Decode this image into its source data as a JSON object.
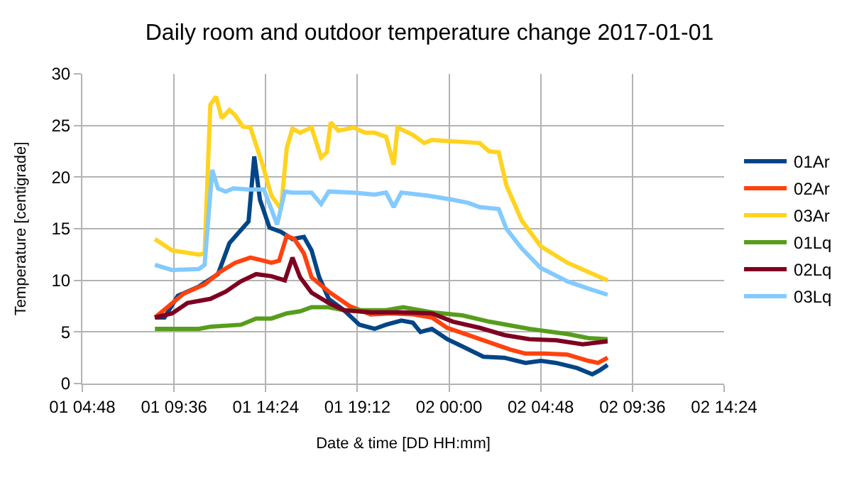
{
  "chart_data": {
    "type": "line",
    "title": "Daily room and outdoor temperature change 2017-01-01",
    "xlabel": "Date & time [DD HH:mm]",
    "ylabel": "Temperature [centigrade]",
    "xlim": [
      "2017-01-01T04:48",
      "2017-01-02T14:24"
    ],
    "ylim": [
      0,
      30
    ],
    "xticks": [
      {
        "value": "2017-01-01T04:48",
        "label": "01 04:48"
      },
      {
        "value": "2017-01-01T09:36",
        "label": "01 09:36"
      },
      {
        "value": "2017-01-01T14:24",
        "label": "01 14:24"
      },
      {
        "value": "2017-01-01T19:12",
        "label": "01 19:12"
      },
      {
        "value": "2017-01-02T00:00",
        "label": "02 00:00"
      },
      {
        "value": "2017-01-02T04:48",
        "label": "02 04:48"
      },
      {
        "value": "2017-01-02T09:36",
        "label": "02 09:36"
      },
      {
        "value": "2017-01-02T14:24",
        "label": "02 14:24"
      }
    ],
    "yticks": [
      0,
      5,
      10,
      15,
      20,
      25,
      30
    ],
    "grid": true,
    "legend": "right",
    "line_style": "solid",
    "series": [
      {
        "name": "01Ar",
        "color": "#004586",
        "x": [
          "2017-01-01T08:36",
          "2017-01-01T09:06",
          "2017-01-01T09:48",
          "2017-01-01T10:54",
          "2017-01-01T11:54",
          "2017-01-01T12:30",
          "2017-01-01T13:30",
          "2017-01-01T13:48",
          "2017-01-01T14:06",
          "2017-01-01T14:36",
          "2017-01-01T15:12",
          "2017-01-01T15:48",
          "2017-01-01T16:24",
          "2017-01-01T16:48",
          "2017-01-01T17:12",
          "2017-01-01T17:42",
          "2017-01-01T18:30",
          "2017-01-01T19:18",
          "2017-01-01T20:06",
          "2017-01-01T20:42",
          "2017-01-01T21:30",
          "2017-01-01T22:06",
          "2017-01-01T22:30",
          "2017-01-01T23:06",
          "2017-01-01T23:54",
          "2017-01-02T00:42",
          "2017-01-02T01:48",
          "2017-01-02T02:54",
          "2017-01-02T04:00",
          "2017-01-02T04:48",
          "2017-01-02T05:36",
          "2017-01-02T06:42",
          "2017-01-02T07:30",
          "2017-01-02T07:54",
          "2017-01-02T08:18"
        ],
        "values": [
          6.4,
          6.4,
          8.5,
          9.4,
          10.6,
          13.6,
          15.7,
          22,
          17.8,
          15.1,
          14.7,
          14.0,
          14.2,
          12.9,
          10.3,
          8.2,
          7.1,
          5.7,
          5.3,
          5.7,
          6.1,
          5.9,
          5.0,
          5.3,
          4.3,
          3.6,
          2.6,
          2.5,
          2.0,
          2.2,
          2.0,
          1.5,
          0.9,
          1.3,
          1.8
        ]
      },
      {
        "name": "02Ar",
        "color": "#ff420e",
        "x": [
          "2017-01-01T08:36",
          "2017-01-01T10:06",
          "2017-01-01T11:12",
          "2017-01-01T12:00",
          "2017-01-01T12:48",
          "2017-01-01T13:36",
          "2017-01-01T14:18",
          "2017-01-01T14:42",
          "2017-01-01T15:06",
          "2017-01-01T15:30",
          "2017-01-01T15:54",
          "2017-01-01T16:24",
          "2017-01-01T16:48",
          "2017-01-01T17:42",
          "2017-01-01T18:48",
          "2017-01-01T19:54",
          "2017-01-01T20:54",
          "2017-01-01T22:06",
          "2017-01-01T23:06",
          "2017-01-01T23:54",
          "2017-01-02T01:00",
          "2017-01-02T02:06",
          "2017-01-02T03:12",
          "2017-01-02T04:00",
          "2017-01-02T05:00",
          "2017-01-02T06:12",
          "2017-01-02T07:18",
          "2017-01-02T07:48",
          "2017-01-02T08:18"
        ],
        "values": [
          6.4,
          8.7,
          9.6,
          10.8,
          11.7,
          12.2,
          11.9,
          11.7,
          11.9,
          14.3,
          14.0,
          12.6,
          10.3,
          8.9,
          7.5,
          6.7,
          6.8,
          6.7,
          6.4,
          5.4,
          4.7,
          4.0,
          3.3,
          2.9,
          2.9,
          2.8,
          2.2,
          2.0,
          2.5
        ]
      },
      {
        "name": "03Ar",
        "color": "#ffd320",
        "x": [
          "2017-01-01T08:36",
          "2017-01-01T09:30",
          "2017-01-01T10:54",
          "2017-01-01T11:12",
          "2017-01-01T11:30",
          "2017-01-01T11:48",
          "2017-01-01T12:06",
          "2017-01-01T12:30",
          "2017-01-01T12:48",
          "2017-01-01T13:12",
          "2017-01-01T13:36",
          "2017-01-01T14:12",
          "2017-01-01T14:42",
          "2017-01-01T15:12",
          "2017-01-01T15:30",
          "2017-01-01T15:48",
          "2017-01-01T16:12",
          "2017-01-01T16:48",
          "2017-01-01T17:18",
          "2017-01-01T17:36",
          "2017-01-01T17:48",
          "2017-01-01T18:12",
          "2017-01-01T19:00",
          "2017-01-01T19:36",
          "2017-01-01T20:06",
          "2017-01-01T20:42",
          "2017-01-01T21:06",
          "2017-01-01T21:18",
          "2017-01-01T22:06",
          "2017-01-01T22:42",
          "2017-01-01T23:06",
          "2017-01-01T23:54",
          "2017-01-02T01:36",
          "2017-01-02T02:06",
          "2017-01-02T02:36",
          "2017-01-02T03:00",
          "2017-01-02T03:48",
          "2017-01-02T04:48",
          "2017-01-02T06:12",
          "2017-01-02T07:18",
          "2017-01-02T08:18"
        ],
        "values": [
          14.0,
          12.9,
          12.5,
          12.6,
          27,
          27.8,
          25.7,
          26.5,
          26,
          24.9,
          24.8,
          21.4,
          18.2,
          16.9,
          22.8,
          24.7,
          24.3,
          24.8,
          21.9,
          22.4,
          25.3,
          24.5,
          24.8,
          24.3,
          24.3,
          23.9,
          21.2,
          24.8,
          24.1,
          23.3,
          23.6,
          23.5,
          23.3,
          22.5,
          22.4,
          19.2,
          15.8,
          13.3,
          11.7,
          10.8,
          10.0
        ]
      },
      {
        "name": "01Lq",
        "color": "#579d1c",
        "x": [
          "2017-01-01T08:36",
          "2017-01-01T10:54",
          "2017-01-01T11:30",
          "2017-01-01T13:06",
          "2017-01-01T13:54",
          "2017-01-01T14:42",
          "2017-01-01T15:30",
          "2017-01-01T16:12",
          "2017-01-01T16:48",
          "2017-01-01T17:42",
          "2017-01-01T18:30",
          "2017-01-01T19:36",
          "2017-01-01T20:42",
          "2017-01-01T21:36",
          "2017-01-01T23:06",
          "2017-01-02T00:42",
          "2017-01-02T02:06",
          "2017-01-02T04:12",
          "2017-01-02T06:12",
          "2017-01-02T07:18",
          "2017-01-02T08:18"
        ],
        "values": [
          5.3,
          5.3,
          5.5,
          5.7,
          6.3,
          6.3,
          6.8,
          7.0,
          7.4,
          7.4,
          7.1,
          7.1,
          7.1,
          7.4,
          6.9,
          6.6,
          6.0,
          5.3,
          4.8,
          4.4,
          4.3
        ]
      },
      {
        "name": "02Lq",
        "color": "#7e0021",
        "x": [
          "2017-01-01T08:36",
          "2017-01-01T09:30",
          "2017-01-01T10:18",
          "2017-01-01T11:30",
          "2017-01-01T12:18",
          "2017-01-01T13:06",
          "2017-01-01T13:54",
          "2017-01-01T14:42",
          "2017-01-01T15:24",
          "2017-01-01T15:48",
          "2017-01-01T16:12",
          "2017-01-01T16:48",
          "2017-01-01T17:42",
          "2017-01-01T18:30",
          "2017-01-01T19:54",
          "2017-01-01T21:30",
          "2017-01-01T23:06",
          "2017-01-02T00:12",
          "2017-01-02T01:36",
          "2017-01-02T02:54",
          "2017-01-02T04:12",
          "2017-01-02T05:36",
          "2017-01-02T07:00",
          "2017-01-02T08:18"
        ],
        "values": [
          6.4,
          6.8,
          7.8,
          8.2,
          8.9,
          9.9,
          10.6,
          10.4,
          10.0,
          12.2,
          10.3,
          8.8,
          7.8,
          7.1,
          6.9,
          6.9,
          6.8,
          6.0,
          5.4,
          4.7,
          4.3,
          4.2,
          3.8,
          4.1
        ]
      },
      {
        "name": "03Lq",
        "color": "#83caff",
        "x": [
          "2017-01-01T08:36",
          "2017-01-01T09:30",
          "2017-01-01T10:54",
          "2017-01-01T11:12",
          "2017-01-01T11:36",
          "2017-01-01T11:54",
          "2017-01-01T12:18",
          "2017-01-01T12:42",
          "2017-01-01T13:30",
          "2017-01-01T14:18",
          "2017-01-01T15:00",
          "2017-01-01T15:24",
          "2017-01-01T15:48",
          "2017-01-01T16:48",
          "2017-01-01T17:18",
          "2017-01-01T17:42",
          "2017-01-01T19:00",
          "2017-01-01T20:06",
          "2017-01-01T20:42",
          "2017-01-01T21:06",
          "2017-01-01T21:30",
          "2017-01-01T22:54",
          "2017-01-02T00:12",
          "2017-01-02T01:00",
          "2017-01-02T01:36",
          "2017-01-02T02:36",
          "2017-01-02T03:00",
          "2017-01-02T03:48",
          "2017-01-02T04:48",
          "2017-01-02T06:12",
          "2017-01-02T07:18",
          "2017-01-02T08:18"
        ],
        "values": [
          11.5,
          11.0,
          11.1,
          11.5,
          20.7,
          18.9,
          18.6,
          18.9,
          18.8,
          18.8,
          15.4,
          18.6,
          18.5,
          18.5,
          17.4,
          18.6,
          18.5,
          18.3,
          18.5,
          17.1,
          18.5,
          18.2,
          17.8,
          17.5,
          17.1,
          16.9,
          15.0,
          13.1,
          11.2,
          9.9,
          9.2,
          8.6
        ]
      }
    ]
  }
}
